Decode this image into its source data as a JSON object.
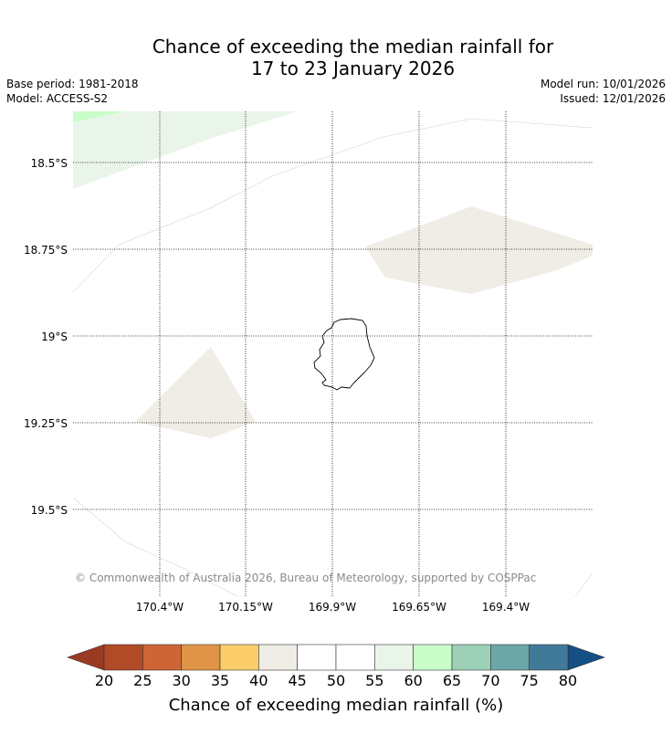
{
  "title_line1": "Chance of exceeding the median rainfall for",
  "title_line2": "17 to 23 January 2026",
  "base_period": "Base period: 1981-2018",
  "model": "Model: ACCESS-S2",
  "model_run": "Model run: 10/01/2026",
  "issued": "Issued: 12/01/2026",
  "copyright": "© Commonwealth of Australia 2026, Bureau of Meteorology, supported by COSPPac",
  "lat_labels": [
    "18.5°S",
    "18.75°S",
    "19°S",
    "19.25°S",
    "19.5°S"
  ],
  "lon_labels": [
    "170.4°W",
    "170.15°W",
    "169.9°W",
    "169.65°W",
    "169.4°W"
  ],
  "colorbar": {
    "title": "Chance of exceeding median rainfall (%)",
    "ticks": [
      "20",
      "25",
      "30",
      "35",
      "40",
      "45",
      "50",
      "55",
      "60",
      "65",
      "70",
      "75",
      "80"
    ],
    "under_color": "#9b3a22",
    "over_color": "#144f86",
    "colors": [
      "#b14a27",
      "#cd6634",
      "#e09447",
      "#fbcd6a",
      "#f0ece6",
      "#ffffff",
      "#ffffff",
      "#eaf5e9",
      "#c9fdca",
      "#9dd0b7",
      "#6da6a6",
      "#417a98"
    ]
  }
}
